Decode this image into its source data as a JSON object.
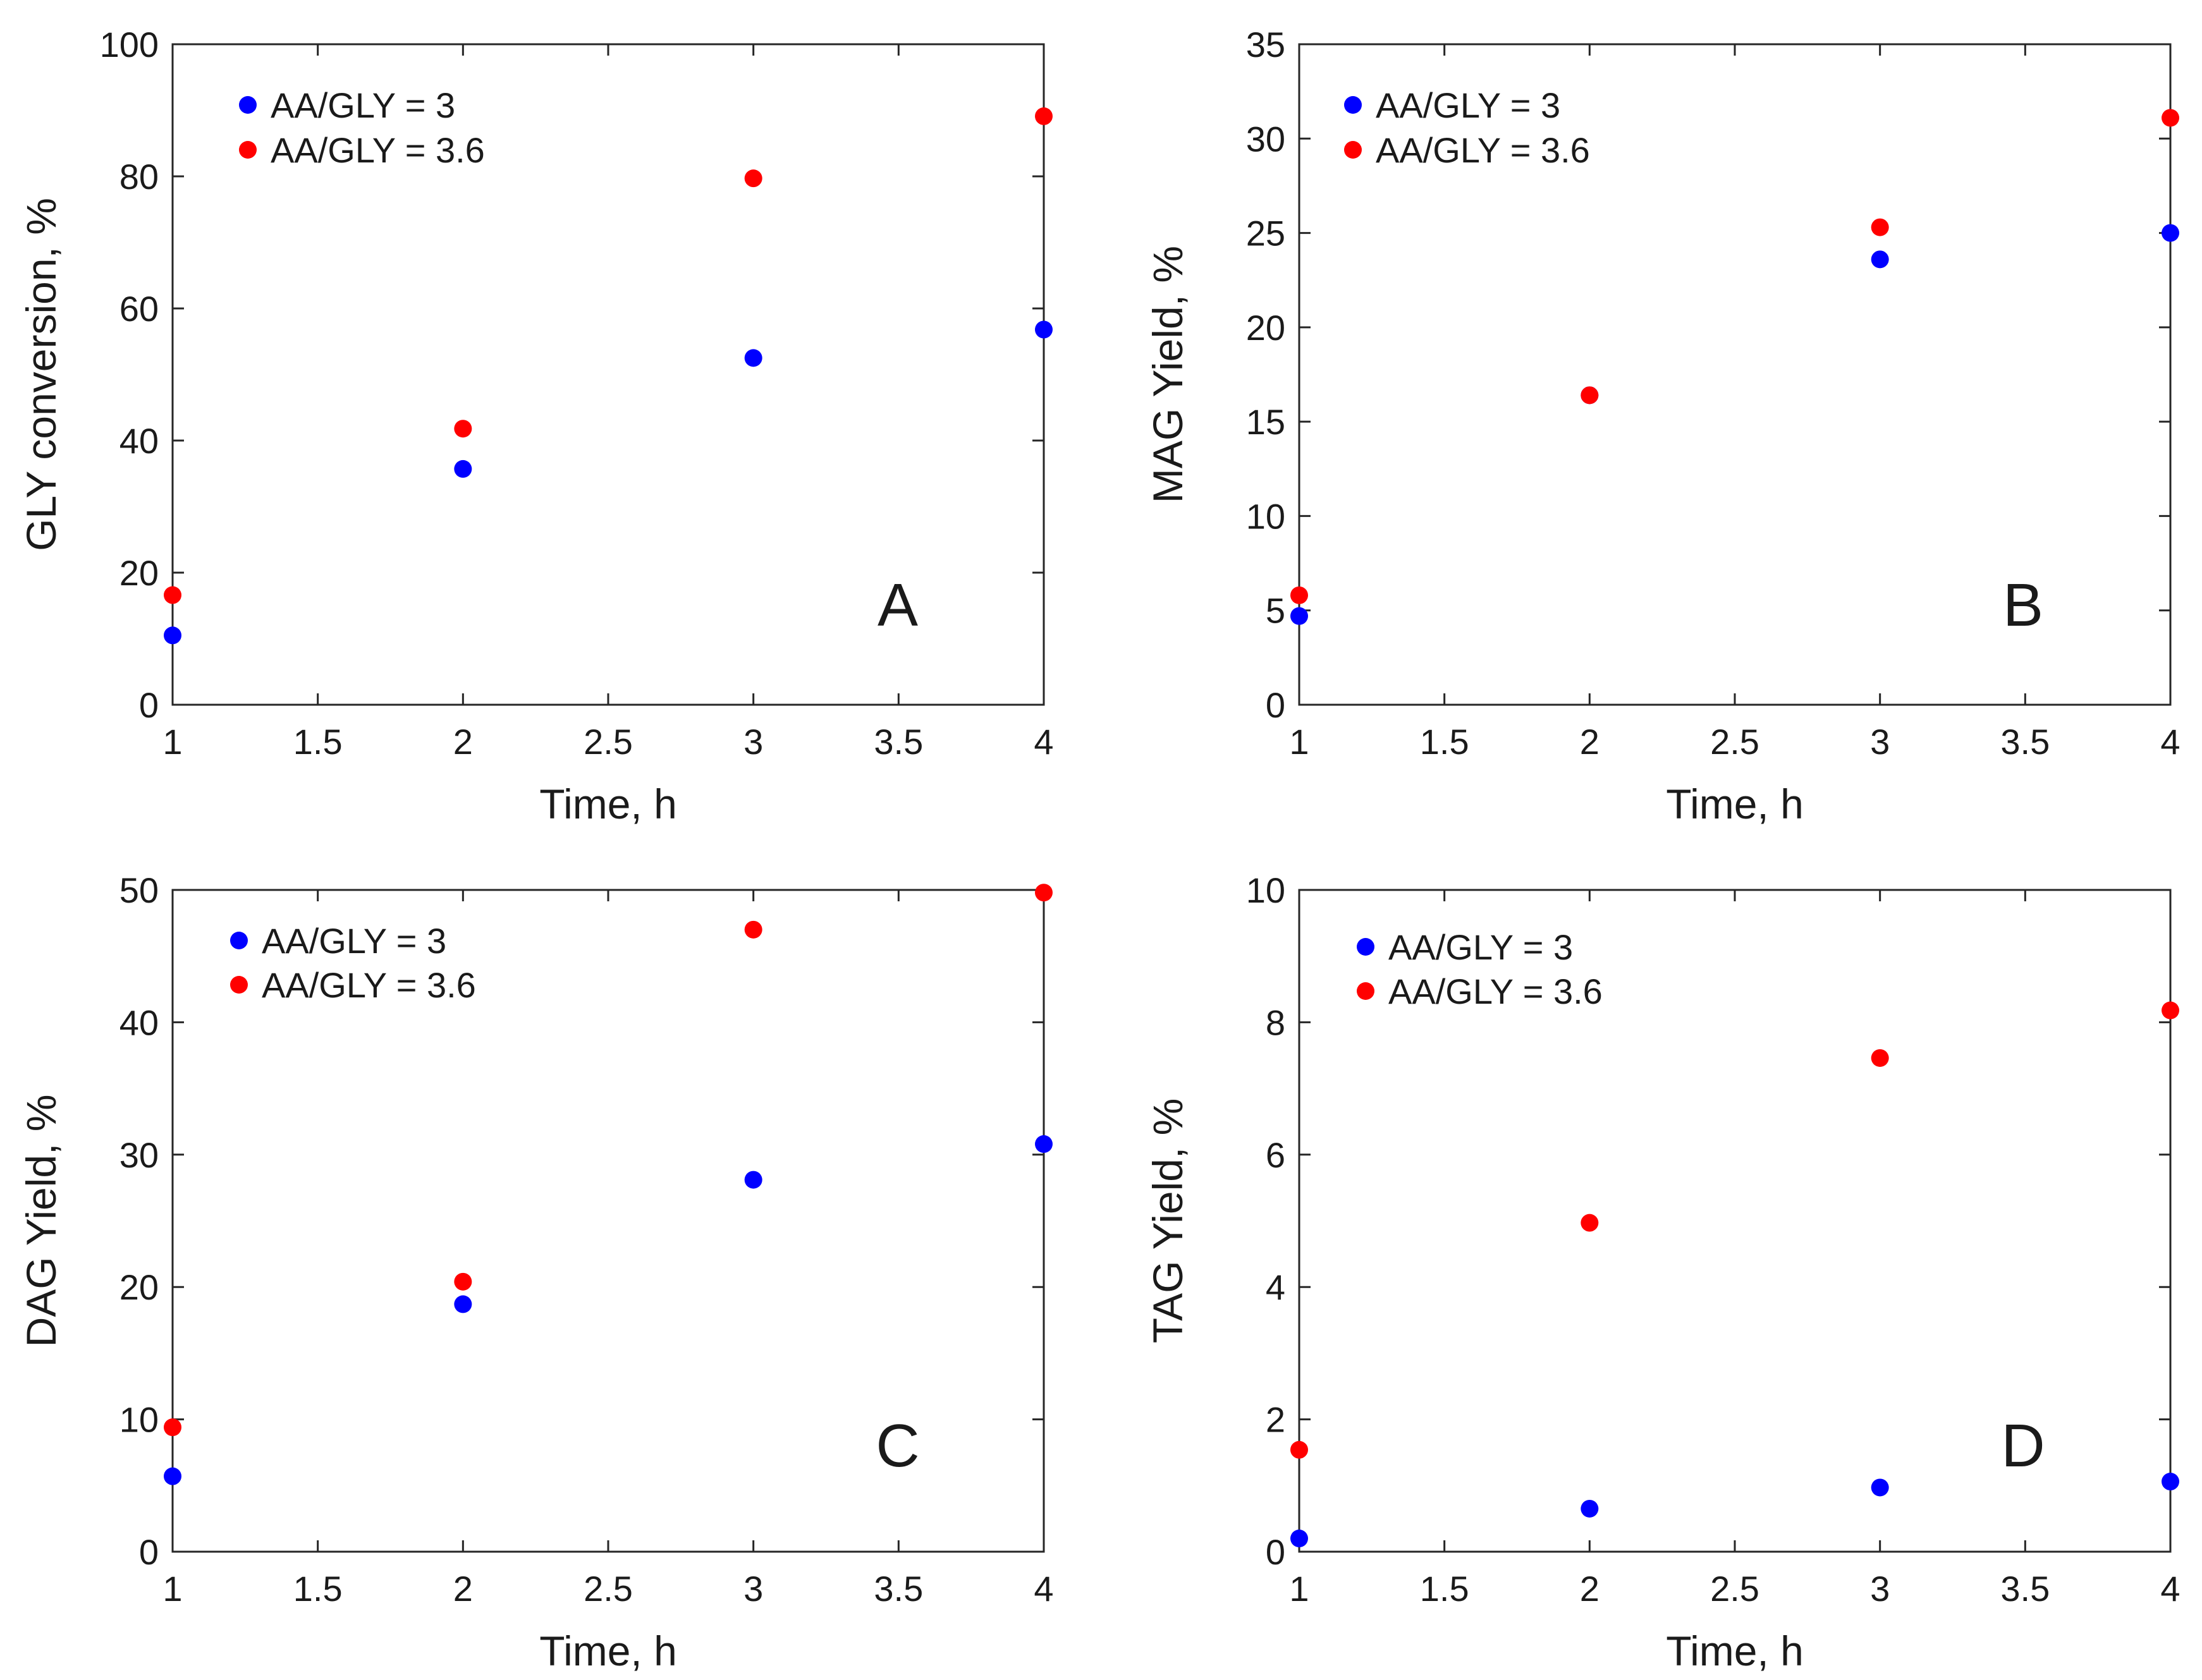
{
  "chart_data": [
    {
      "type": "scatter",
      "panel_label": "A",
      "xlabel": "Time, h",
      "ylabel": "GLY conversion, %",
      "xlim": [
        1,
        4
      ],
      "ylim": [
        0,
        100
      ],
      "xticks": [
        1,
        1.5,
        2,
        2.5,
        3,
        3.5,
        4
      ],
      "yticks": [
        0,
        20,
        40,
        60,
        80,
        100
      ],
      "legend_position": "top-left",
      "series": [
        {
          "name": "AA/GLY = 3",
          "color": "#0000ff",
          "x": [
            1,
            2,
            3,
            4
          ],
          "y": [
            10.5,
            35.7,
            52.5,
            56.8
          ]
        },
        {
          "name": "AA/GLY = 3.6",
          "color": "#ff0000",
          "x": [
            1,
            2,
            3,
            4
          ],
          "y": [
            16.6,
            41.8,
            79.7,
            89.1
          ]
        }
      ]
    },
    {
      "type": "scatter",
      "panel_label": "B",
      "xlabel": "Time, h",
      "ylabel": "MAG Yield, %",
      "xlim": [
        1,
        4
      ],
      "ylim": [
        0,
        35
      ],
      "xticks": [
        1,
        1.5,
        2,
        2.5,
        3,
        3.5,
        4
      ],
      "yticks": [
        0,
        5,
        10,
        15,
        20,
        25,
        30,
        35
      ],
      "legend_position": "top-left",
      "series": [
        {
          "name": "AA/GLY = 3",
          "color": "#0000ff",
          "x": [
            1,
            2,
            3,
            4
          ],
          "y": [
            4.7,
            16.4,
            23.6,
            25.0
          ]
        },
        {
          "name": "AA/GLY = 3.6",
          "color": "#ff0000",
          "x": [
            1,
            2,
            3,
            4
          ],
          "y": [
            5.8,
            16.4,
            25.3,
            31.1
          ]
        }
      ]
    },
    {
      "type": "scatter",
      "panel_label": "C",
      "xlabel": "Time, h",
      "ylabel": "DAG Yield, %",
      "xlim": [
        1,
        4
      ],
      "ylim": [
        0,
        50
      ],
      "xticks": [
        1,
        1.5,
        2,
        2.5,
        3,
        3.5,
        4
      ],
      "yticks": [
        0,
        10,
        20,
        30,
        40,
        50
      ],
      "legend_position": "top-left",
      "series": [
        {
          "name": "AA/GLY = 3",
          "color": "#0000ff",
          "x": [
            1,
            2,
            3,
            4
          ],
          "y": [
            5.7,
            18.7,
            28.1,
            30.8
          ]
        },
        {
          "name": "AA/GLY = 3.6",
          "color": "#ff0000",
          "x": [
            1,
            2,
            3,
            4
          ],
          "y": [
            9.4,
            20.4,
            47.0,
            49.8
          ]
        }
      ]
    },
    {
      "type": "scatter",
      "panel_label": "D",
      "xlabel": "Time, h",
      "ylabel": "TAG Yield, %",
      "xlim": [
        1,
        4
      ],
      "ylim": [
        0,
        10
      ],
      "xticks": [
        1,
        1.5,
        2,
        2.5,
        3,
        3.5,
        4
      ],
      "yticks": [
        0,
        2,
        4,
        6,
        8,
        10
      ],
      "legend_position": "top-left",
      "series": [
        {
          "name": "AA/GLY = 3",
          "color": "#0000ff",
          "x": [
            1,
            2,
            3,
            4
          ],
          "y": [
            0.2,
            0.65,
            0.97,
            1.06
          ]
        },
        {
          "name": "AA/GLY = 3.6",
          "color": "#ff0000",
          "x": [
            1,
            2,
            3,
            4
          ],
          "y": [
            1.54,
            4.97,
            7.46,
            8.18
          ]
        }
      ]
    }
  ]
}
